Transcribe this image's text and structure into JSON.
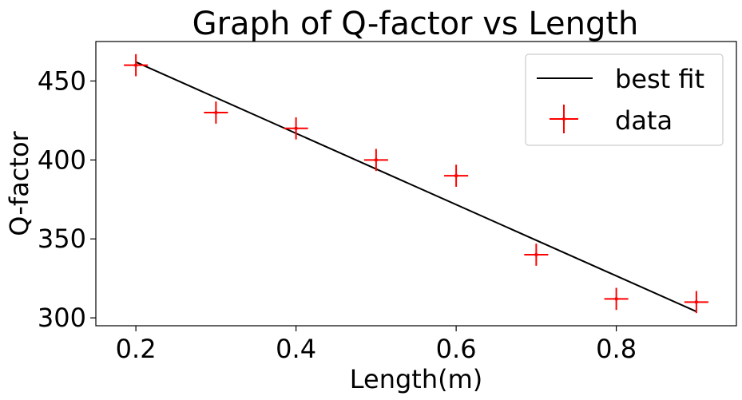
{
  "chart_data": {
    "type": "scatter",
    "title": "Graph of Q-factor vs Length",
    "xlabel": "Length(m)",
    "ylabel": "Q-factor",
    "xlim": [
      0.15,
      0.95
    ],
    "ylim": [
      295,
      475
    ],
    "xticks": [
      0.2,
      0.4,
      0.6,
      0.8
    ],
    "xtick_labels": [
      "0.2",
      "0.4",
      "0.6",
      "0.8"
    ],
    "yticks": [
      300,
      350,
      400,
      450
    ],
    "ytick_labels": [
      "300",
      "350",
      "400",
      "450"
    ],
    "grid": false,
    "legend": {
      "placement": "top-right",
      "entries": [
        {
          "label": "best fit",
          "kind": "line",
          "color": "#000000"
        },
        {
          "label": "data",
          "kind": "errorbar",
          "color": "#ff0000"
        }
      ]
    },
    "series": [
      {
        "name": "data",
        "kind": "errorbar",
        "color": "#ff0000",
        "x": [
          0.2,
          0.3,
          0.4,
          0.5,
          0.6,
          0.7,
          0.8,
          0.9
        ],
        "y": [
          460,
          430,
          420,
          400,
          390,
          340,
          312,
          310
        ],
        "xerr": 0.015,
        "yerr": 7
      },
      {
        "name": "best fit",
        "kind": "line",
        "color": "#000000",
        "x": [
          0.2,
          0.9
        ],
        "y": [
          462,
          304
        ]
      }
    ]
  }
}
